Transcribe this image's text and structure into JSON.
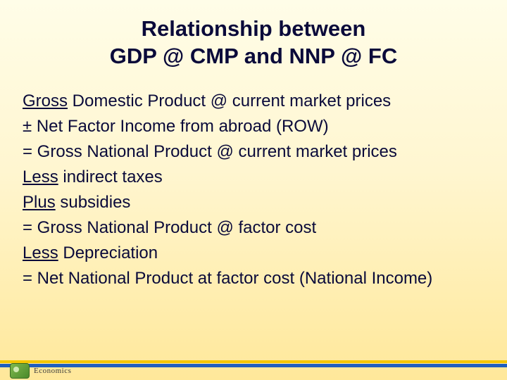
{
  "colors": {
    "bg_top": "#fffde8",
    "bg_mid": "#fff6d0",
    "bg_bottom": "#ffe89a",
    "text": "#0a0a3a",
    "stripe_yellow": "#f4c600",
    "stripe_blue": "#1f5fbf",
    "badge_green_a": "#7fb84e",
    "badge_green_b": "#4a8a2a"
  },
  "typography": {
    "font_family": "Comic Sans MS",
    "title_fontsize_pt": 23,
    "body_fontsize_pt": 18,
    "title_weight": "bold",
    "body_weight": "normal"
  },
  "title": {
    "line1": "Relationship between",
    "line2": "GDP @ CMP and NNP @ FC"
  },
  "lines": [
    {
      "prefix": "Gross",
      "prefix_underline": true,
      "rest": " Domestic Product @ current market prices"
    },
    {
      "prefix": "±",
      "prefix_underline": false,
      "rest": " Net Factor Income from abroad (ROW)"
    },
    {
      "prefix": "=",
      "prefix_underline": false,
      "rest": " Gross National Product @ current market prices"
    },
    {
      "prefix": "Less",
      "prefix_underline": true,
      "rest": " indirect taxes"
    },
    {
      "prefix": "Plus",
      "prefix_underline": true,
      "rest": " subsidies"
    },
    {
      "prefix": "=",
      "prefix_underline": false,
      "rest": " Gross National Product @ factor cost"
    },
    {
      "prefix": "Less",
      "prefix_underline": true,
      "rest": " Depreciation"
    },
    {
      "prefix": "=",
      "prefix_underline": false,
      "rest": " Net National Product at factor cost (National Income)"
    }
  ],
  "footer": {
    "badge_label": "Economics"
  }
}
